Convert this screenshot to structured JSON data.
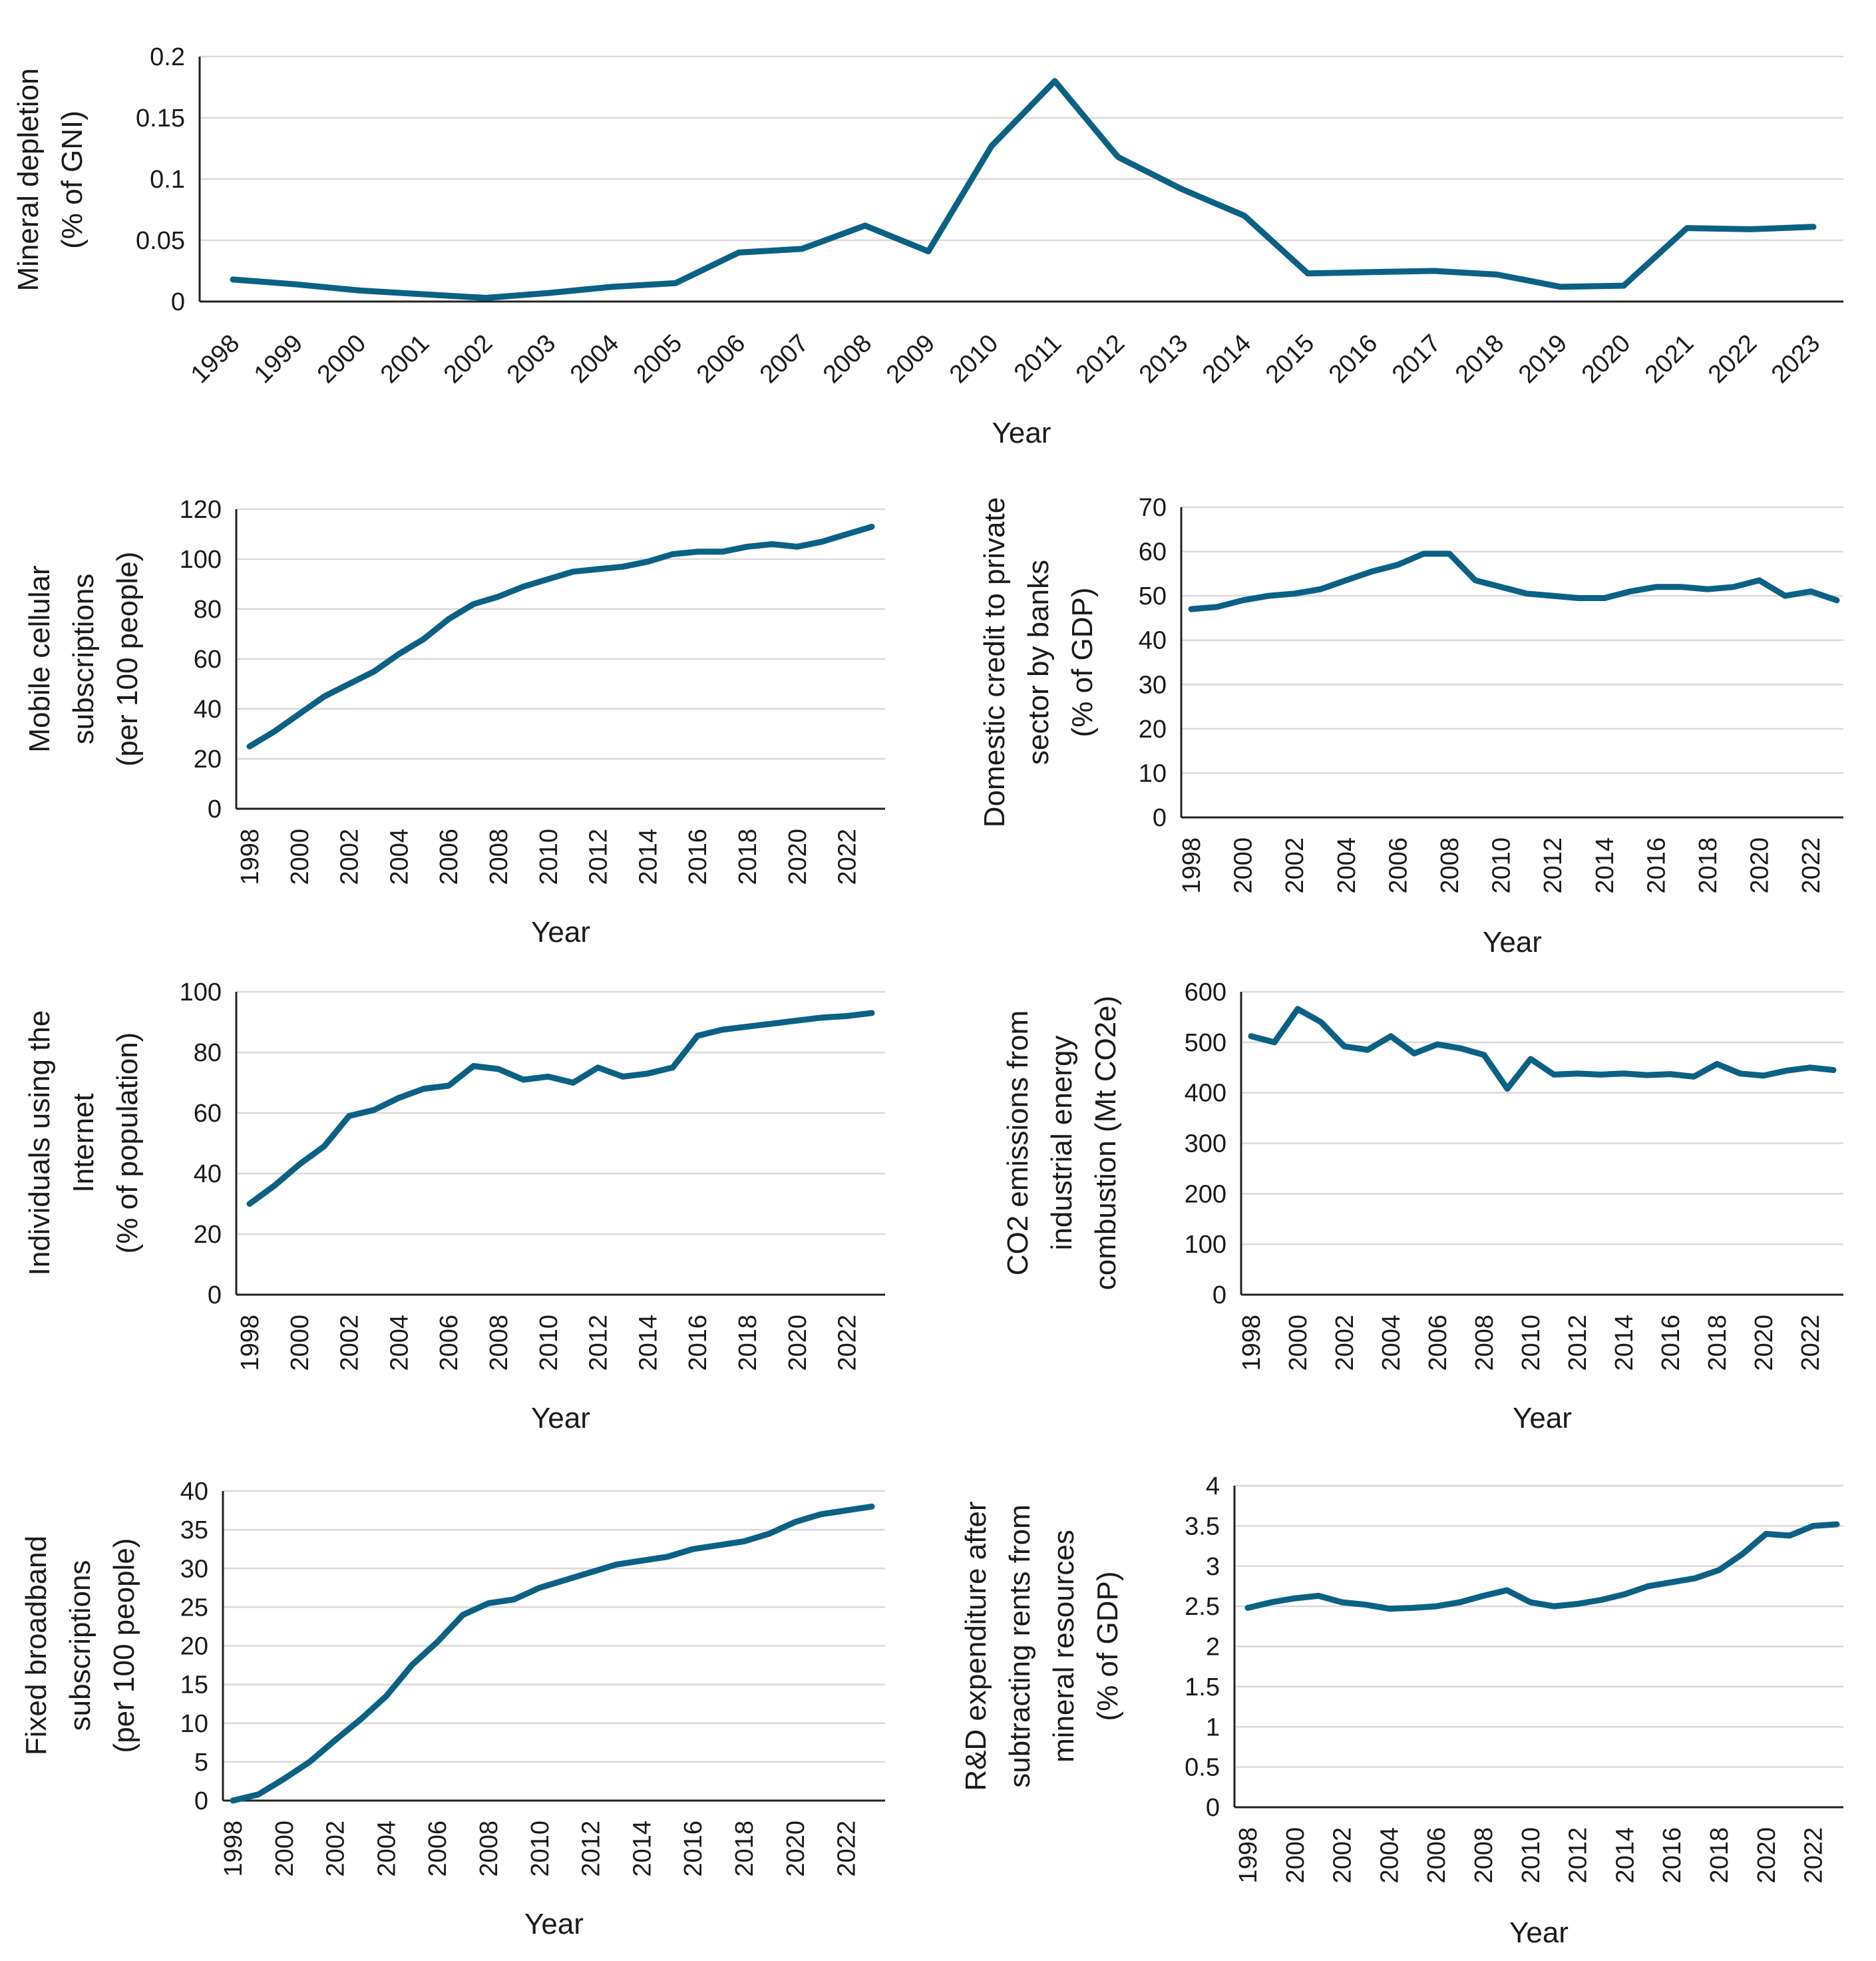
{
  "colors": {
    "series": "#0b6184",
    "grid": "#d9d9d9",
    "axis": "#222222"
  },
  "chart_data": [
    {
      "id": "mineral",
      "type": "line",
      "xlabel": "Year",
      "ylabel_lines": [
        "Mineral depletion",
        "(% of GNI)"
      ],
      "ylim": [
        0,
        0.2
      ],
      "yticks": [
        "0",
        "0.05",
        "0.1",
        "0.15",
        "0.2"
      ],
      "x": [
        1998,
        1999,
        2000,
        2001,
        2002,
        2003,
        2004,
        2005,
        2006,
        2007,
        2008,
        2009,
        2010,
        2011,
        2012,
        2013,
        2014,
        2015,
        2016,
        2017,
        2018,
        2019,
        2020,
        2021,
        2022,
        2023
      ],
      "xtick_labels": [
        "1998",
        "1999",
        "2000",
        "2001",
        "2002",
        "2003",
        "2004",
        "2005",
        "2006",
        "2007",
        "2008",
        "2009",
        "2010",
        "2011",
        "2012",
        "2013",
        "2014",
        "2015",
        "2016",
        "2017",
        "2018",
        "2019",
        "2020",
        "2021",
        "2022",
        "2023"
      ],
      "values": [
        0.018,
        0.014,
        0.009,
        0.006,
        0.003,
        0.007,
        0.012,
        0.015,
        0.04,
        0.043,
        0.062,
        0.041,
        0.127,
        0.18,
        0.118,
        0.092,
        0.07,
        0.023,
        0.024,
        0.025,
        0.022,
        0.012,
        0.013,
        0.06,
        0.059,
        0.061
      ]
    },
    {
      "id": "mobile",
      "type": "line",
      "xlabel": "Year",
      "ylabel_lines": [
        "Mobile cellular",
        "subscriptions",
        "(per 100 people)"
      ],
      "ylim": [
        0,
        120
      ],
      "yticks": [
        "0",
        "20",
        "40",
        "60",
        "80",
        "100",
        "120"
      ],
      "x": [
        1998,
        1999,
        2000,
        2001,
        2002,
        2003,
        2004,
        2005,
        2006,
        2007,
        2008,
        2009,
        2010,
        2011,
        2012,
        2013,
        2014,
        2015,
        2016,
        2017,
        2018,
        2019,
        2020,
        2021,
        2022,
        2023
      ],
      "xtick_labels": [
        "1998",
        "2000",
        "2002",
        "2004",
        "2006",
        "2008",
        "2010",
        "2012",
        "2014",
        "2016",
        "2018",
        "2020",
        "2022"
      ],
      "values": [
        25,
        31,
        38,
        45,
        50,
        55,
        62,
        68,
        76,
        82,
        85,
        89,
        92,
        95,
        96,
        97,
        99,
        102,
        103,
        103,
        105,
        106,
        105,
        107,
        110,
        113
      ]
    },
    {
      "id": "credit",
      "type": "line",
      "xlabel": "Year",
      "ylabel_lines": [
        "Domestic credit to private",
        "sector by banks",
        "(% of GDP)"
      ],
      "ylim": [
        0,
        70
      ],
      "yticks": [
        "0",
        "10",
        "20",
        "30",
        "40",
        "50",
        "60",
        "70"
      ],
      "x": [
        1998,
        1999,
        2000,
        2001,
        2002,
        2003,
        2004,
        2005,
        2006,
        2007,
        2008,
        2009,
        2010,
        2011,
        2012,
        2013,
        2014,
        2015,
        2016,
        2017,
        2018,
        2019,
        2020,
        2021,
        2022,
        2023
      ],
      "xtick_labels": [
        "1998",
        "2000",
        "2002",
        "2004",
        "2006",
        "2008",
        "2010",
        "2012",
        "2014",
        "2016",
        "2018",
        "2020",
        "2022"
      ],
      "values": [
        47,
        47.5,
        49,
        50,
        50.5,
        51.5,
        53.5,
        55.5,
        57,
        59.5,
        59.5,
        53.5,
        52,
        50.5,
        50,
        49.5,
        49.5,
        51,
        52,
        52,
        51.5,
        52,
        53.5,
        50,
        51,
        49
      ]
    },
    {
      "id": "internet",
      "type": "line",
      "xlabel": "Year",
      "ylabel_lines": [
        "Individuals using the",
        "Internet",
        "(% of population)"
      ],
      "ylim": [
        0,
        100
      ],
      "yticks": [
        "0",
        "20",
        "40",
        "60",
        "80",
        "100"
      ],
      "x": [
        1998,
        1999,
        2000,
        2001,
        2002,
        2003,
        2004,
        2005,
        2006,
        2007,
        2008,
        2009,
        2010,
        2011,
        2012,
        2013,
        2014,
        2015,
        2016,
        2017,
        2018,
        2019,
        2020,
        2021,
        2022,
        2023
      ],
      "xtick_labels": [
        "1998",
        "2000",
        "2002",
        "2004",
        "2006",
        "2008",
        "2010",
        "2012",
        "2014",
        "2016",
        "2018",
        "2020",
        "2022"
      ],
      "values": [
        30,
        36,
        43,
        49,
        59,
        61,
        65,
        68,
        69,
        75.5,
        74.5,
        71,
        72,
        70,
        75,
        72,
        73,
        75,
        85.5,
        87.5,
        88.5,
        89.5,
        90.5,
        91.5,
        92,
        93
      ]
    },
    {
      "id": "co2",
      "type": "line",
      "xlabel": "Year",
      "ylabel_lines": [
        "CO2 emissions from",
        "industrial energy",
        "combustion (Mt CO2e)"
      ],
      "ylim": [
        0,
        600
      ],
      "yticks": [
        "0",
        "100",
        "200",
        "300",
        "400",
        "500",
        "600"
      ],
      "x": [
        1998,
        1999,
        2000,
        2001,
        2002,
        2003,
        2004,
        2005,
        2006,
        2007,
        2008,
        2009,
        2010,
        2011,
        2012,
        2013,
        2014,
        2015,
        2016,
        2017,
        2018,
        2019,
        2020,
        2021,
        2022,
        2023
      ],
      "xtick_labels": [
        "1998",
        "2000",
        "2002",
        "2004",
        "2006",
        "2008",
        "2010",
        "2012",
        "2014",
        "2016",
        "2018",
        "2020",
        "2022"
      ],
      "values": [
        512,
        500,
        566,
        540,
        492,
        485,
        512,
        478,
        496,
        488,
        475,
        408,
        467,
        436,
        438,
        436,
        438,
        435,
        437,
        432,
        457,
        438,
        434,
        444,
        450,
        445
      ]
    },
    {
      "id": "broadband",
      "type": "line",
      "xlabel": "Year",
      "ylabel_lines": [
        "Fixed broadband",
        "subscriptions",
        "(per 100 people)"
      ],
      "ylim": [
        0,
        40
      ],
      "yticks": [
        "0",
        "5",
        "10",
        "15",
        "20",
        "25",
        "30",
        "35",
        "40"
      ],
      "x": [
        1998,
        1999,
        2000,
        2001,
        2002,
        2003,
        2004,
        2005,
        2006,
        2007,
        2008,
        2009,
        2010,
        2011,
        2012,
        2013,
        2014,
        2015,
        2016,
        2017,
        2018,
        2019,
        2020,
        2021,
        2022,
        2023
      ],
      "xtick_labels": [
        "1998",
        "2000",
        "2002",
        "2004",
        "2006",
        "2008",
        "2010",
        "2012",
        "2014",
        "2016",
        "2018",
        "2020",
        "2022"
      ],
      "values": [
        0,
        0.8,
        2.8,
        5,
        7.8,
        10.5,
        13.5,
        17.5,
        20.5,
        24,
        25.5,
        26,
        27.5,
        28.5,
        29.5,
        30.5,
        31,
        31.5,
        32.5,
        33,
        33.5,
        34.5,
        36,
        37,
        37.5,
        38
      ]
    },
    {
      "id": "rnd",
      "type": "line",
      "xlabel": "Year",
      "ylabel_lines": [
        "R&D expenditure after",
        "subtracting rents from",
        "mineral resources",
        "(% of GDP)"
      ],
      "ylim": [
        0,
        4
      ],
      "yticks": [
        "0",
        "0.5",
        "1",
        "1.5",
        "2",
        "2.5",
        "3",
        "3.5",
        "4"
      ],
      "x": [
        1998,
        1999,
        2000,
        2001,
        2002,
        2003,
        2004,
        2005,
        2006,
        2007,
        2008,
        2009,
        2010,
        2011,
        2012,
        2013,
        2014,
        2015,
        2016,
        2017,
        2018,
        2019,
        2020,
        2021,
        2022,
        2023
      ],
      "xtick_labels": [
        "1998",
        "2000",
        "2002",
        "2004",
        "2006",
        "2008",
        "2010",
        "2012",
        "2014",
        "2016",
        "2018",
        "2020",
        "2022"
      ],
      "values": [
        2.48,
        2.55,
        2.6,
        2.63,
        2.55,
        2.52,
        2.47,
        2.48,
        2.5,
        2.55,
        2.63,
        2.7,
        2.55,
        2.5,
        2.53,
        2.58,
        2.65,
        2.75,
        2.8,
        2.85,
        2.95,
        3.15,
        3.4,
        3.38,
        3.5,
        3.52
      ]
    }
  ]
}
